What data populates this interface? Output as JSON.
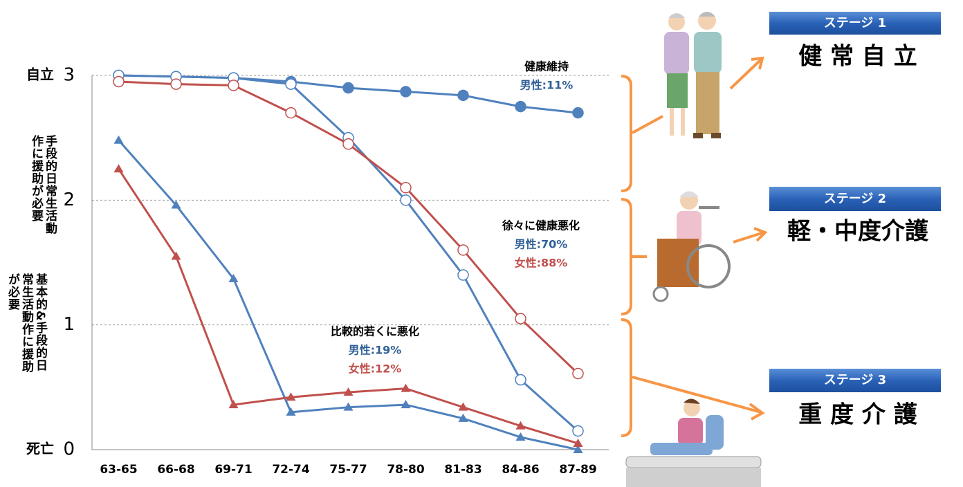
{
  "chart_data": {
    "type": "line",
    "categories": [
      "63-65",
      "66-68",
      "69-71",
      "72-74",
      "75-77",
      "78-80",
      "81-83",
      "84-86",
      "87-89"
    ],
    "ylim": [
      0,
      3
    ],
    "yticks": [
      0,
      1,
      2,
      3
    ],
    "grid": true,
    "y_level_labels": [
      {
        "value": 3,
        "text": "自立"
      },
      {
        "value": 0,
        "text": "死亡"
      }
    ],
    "y_notes": [
      "手段的日常生活動作に援助が必要",
      "基本的&手段的日常生活動作に援助が必要"
    ],
    "series": [
      {
        "color": "#4f81bd",
        "marker": "circle",
        "filled": true,
        "values": [
          3.0,
          2.99,
          2.98,
          2.95,
          2.9,
          2.87,
          2.84,
          2.75,
          2.7
        ]
      },
      {
        "color": "#4f81bd",
        "marker": "circle",
        "filled": false,
        "values": [
          3.0,
          2.99,
          2.98,
          2.93,
          2.5,
          2.0,
          1.4,
          0.56,
          0.15
        ]
      },
      {
        "color": "#c0504d",
        "marker": "circle",
        "filled": false,
        "values": [
          2.95,
          2.93,
          2.92,
          2.7,
          2.45,
          2.1,
          1.6,
          1.05,
          0.61
        ]
      },
      {
        "color": "#4f81bd",
        "marker": "triangle",
        "filled": true,
        "values": [
          2.48,
          1.96,
          1.37,
          0.3,
          0.34,
          0.36,
          0.25,
          0.1,
          0.0
        ]
      },
      {
        "color": "#c0504d",
        "marker": "triangle",
        "filled": true,
        "values": [
          2.25,
          1.55,
          0.36,
          0.42,
          0.46,
          0.49,
          0.34,
          0.19,
          0.05
        ]
      }
    ],
    "annotations": [
      {
        "title": "健康維持",
        "lines": [
          {
            "text": "男性:11%",
            "color": "#2f5f97"
          }
        ]
      },
      {
        "title": "徐々に健康悪化",
        "lines": [
          {
            "text": "男性:70%",
            "color": "#2f5f97"
          },
          {
            "text": "女性:88%",
            "color": "#c0504d"
          }
        ]
      },
      {
        "title": "比較的若くに悪化",
        "lines": [
          {
            "text": "男性:19%",
            "color": "#2f5f97"
          },
          {
            "text": "女性:12%",
            "color": "#c0504d"
          }
        ]
      }
    ]
  },
  "stages": [
    {
      "badge": "ステージ 1",
      "label": "健 常 自 立"
    },
    {
      "badge": "ステージ 2",
      "label": "軽・中度介護"
    },
    {
      "badge": "ステージ 3",
      "label": "重 度 介 護"
    }
  ]
}
